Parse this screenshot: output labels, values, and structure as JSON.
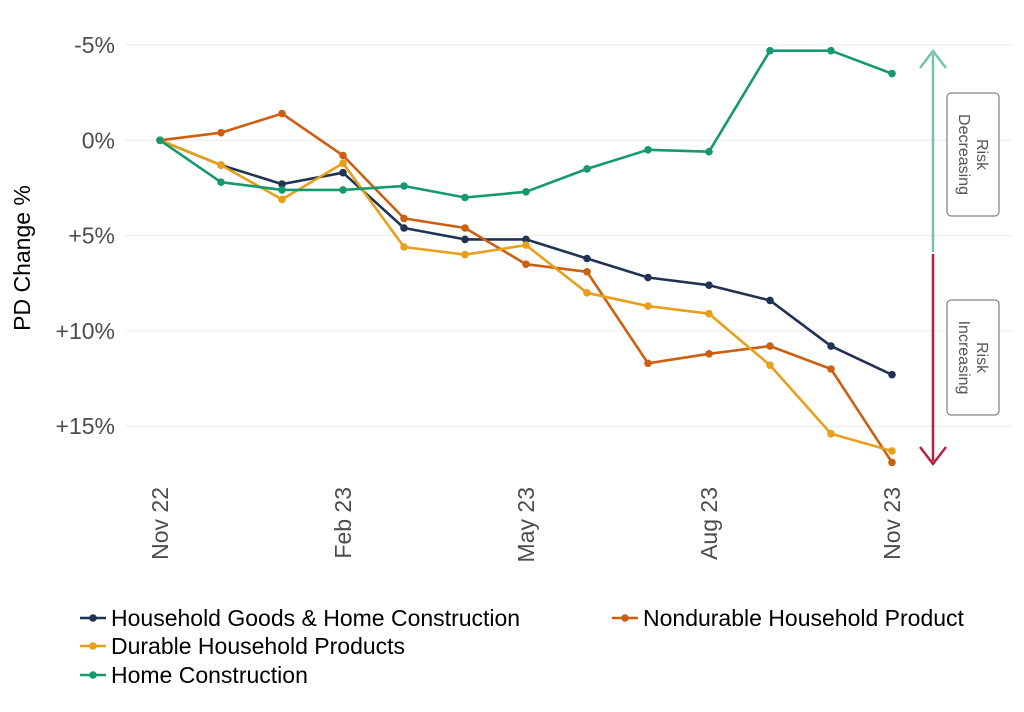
{
  "chart_data": {
    "type": "line",
    "xlabel": "",
    "ylabel": "PD Change %",
    "y_reversed": true,
    "ylim": [
      -5,
      17
    ],
    "x": [
      "Nov 22",
      "Dec 22",
      "Jan 23",
      "Feb 23",
      "Mar 23",
      "Apr 23",
      "May 23",
      "Jun 23",
      "Jul 23",
      "Aug 23",
      "Sep 23",
      "Oct 23",
      "Nov 23"
    ],
    "x_tick_labels": [
      "Nov 22",
      "Feb 23",
      "May 23",
      "Aug 23",
      "Nov 23"
    ],
    "y_ticks": [
      -5,
      0,
      5,
      10,
      15
    ],
    "y_tick_labels": [
      "-5%",
      "0%",
      "+5%",
      "+10%",
      "+15%"
    ],
    "grid": true,
    "legend_position": "bottom",
    "series": [
      {
        "name": "Household Goods & Home Construction",
        "color": "#1f3354",
        "values": [
          0,
          1.3,
          2.3,
          1.7,
          4.6,
          5.2,
          5.2,
          6.2,
          7.2,
          7.6,
          8.4,
          10.8,
          12.3
        ]
      },
      {
        "name": "Nondurable Household Product",
        "color": "#cc6010",
        "values": [
          0,
          -0.4,
          -1.4,
          0.8,
          4.1,
          4.6,
          6.5,
          6.9,
          11.7,
          11.2,
          10.8,
          12.0,
          16.9
        ]
      },
      {
        "name": "Durable Household Products",
        "color": "#e89f1a",
        "values": [
          0,
          1.3,
          3.1,
          1.2,
          5.6,
          6.0,
          5.5,
          8.0,
          8.7,
          9.1,
          11.8,
          15.4,
          16.3
        ]
      },
      {
        "name": "Home Construction",
        "color": "#14996e",
        "values": [
          0,
          2.2,
          2.6,
          2.6,
          2.4,
          3.0,
          2.7,
          1.5,
          0.5,
          0.6,
          -4.7,
          -4.7,
          -3.5
        ]
      }
    ],
    "annotations": {
      "risk_decreasing": "Risk Decreasing",
      "risk_increasing": "Risk Increasing",
      "decreasing_color": "#74c2ad",
      "increasing_color": "#b5213f"
    }
  }
}
